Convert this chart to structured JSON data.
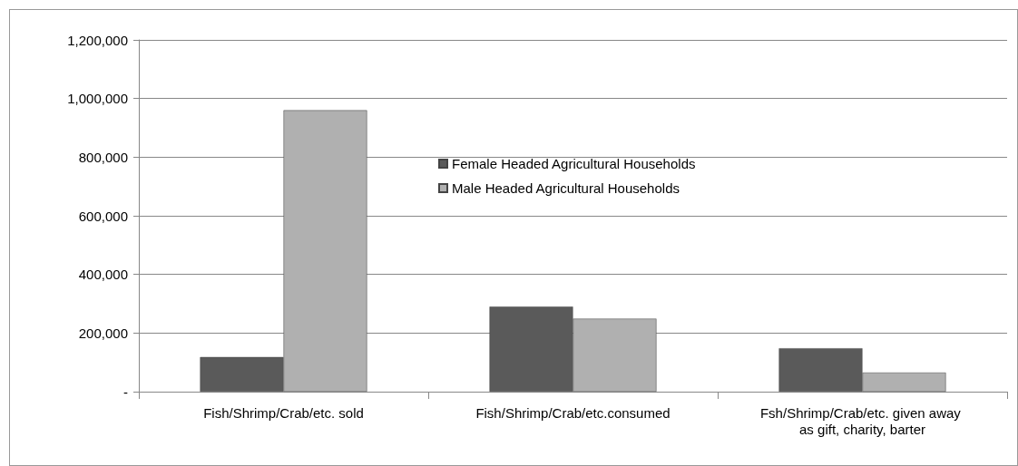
{
  "chart_data": {
    "type": "bar",
    "categories": [
      "Fish/Shrimp/Crab/etc. sold",
      "Fish/Shrimp/Crab/etc.consumed",
      "Fsh/Shrimp/Crab/etc. given away as gift, charity, barter"
    ],
    "series": [
      {
        "name": "Female Headed Agricultural Households",
        "color": "#5a5a5a",
        "values": [
          118000,
          290000,
          148000
        ]
      },
      {
        "name": "Male Headed Agricultural Households",
        "color": "#b0b0b0",
        "values": [
          960000,
          249000,
          65000
        ]
      }
    ],
    "ylim": [
      0,
      1200000
    ],
    "yticks": [
      {
        "value": 0,
        "label": "-"
      },
      {
        "value": 200000,
        "label": "200,000"
      },
      {
        "value": 400000,
        "label": "400,000"
      },
      {
        "value": 600000,
        "label": "600,000"
      },
      {
        "value": 800000,
        "label": "800,000"
      },
      {
        "value": 1000000,
        "label": "1,000,000"
      },
      {
        "value": 1200000,
        "label": "1,200,000"
      }
    ],
    "grid": "y",
    "legend": "center"
  }
}
